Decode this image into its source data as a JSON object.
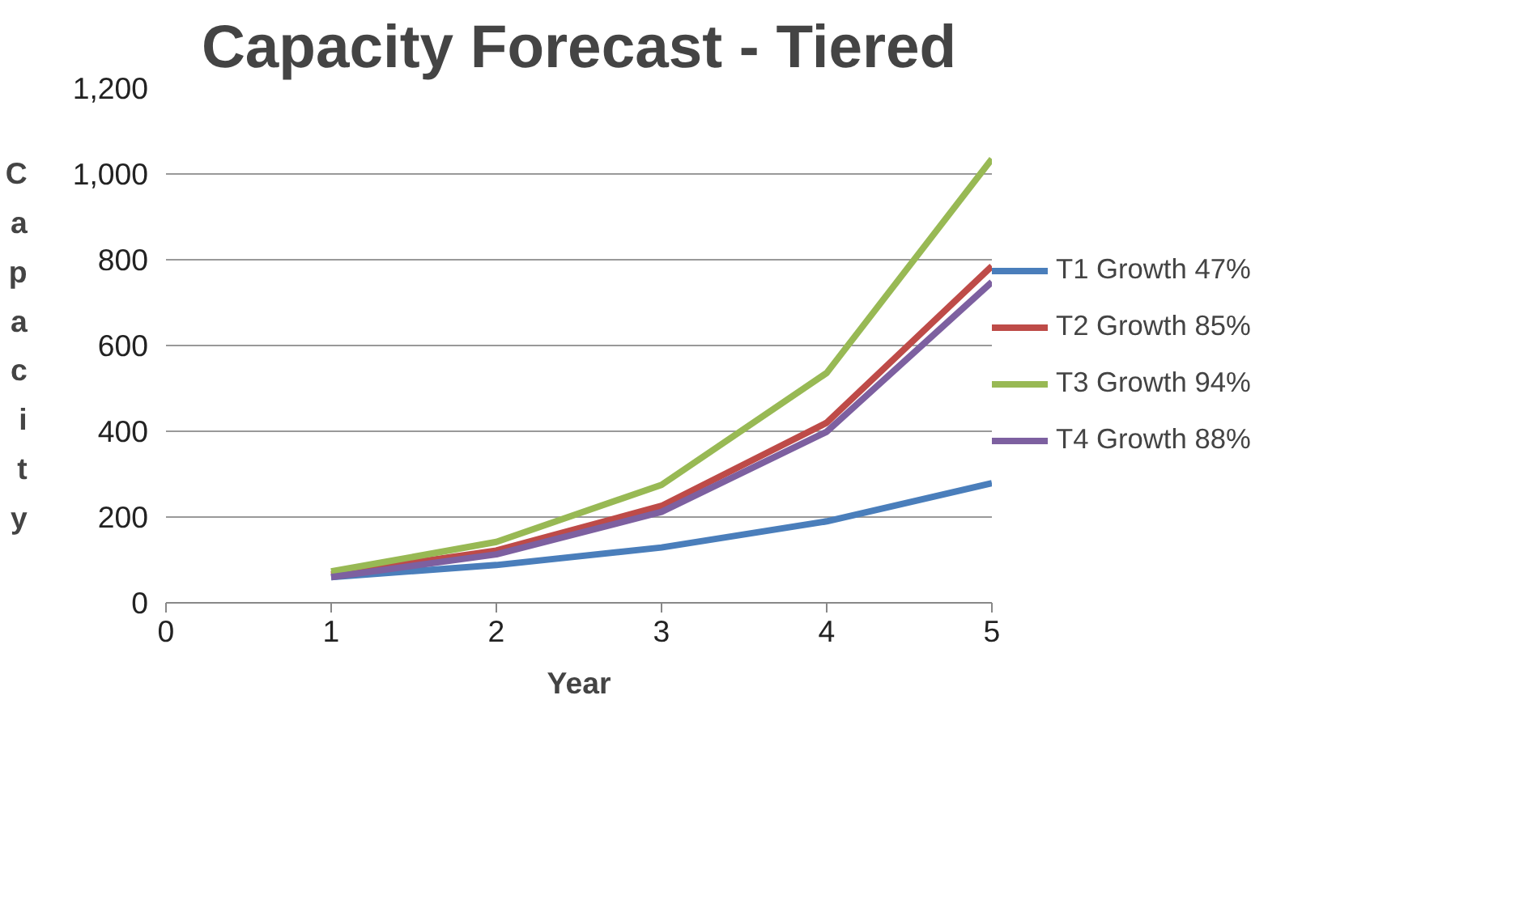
{
  "chart_data": {
    "type": "line",
    "title": "Capacity Forecast - Tiered",
    "xlabel": "Year",
    "ylabel": "Capacity",
    "x": [
      1,
      2,
      3,
      4,
      5
    ],
    "series": [
      {
        "name": "T1 Growth 47%",
        "color": "#4a7ebb",
        "values": [
          60,
          88,
          129,
          190,
          279
        ]
      },
      {
        "name": "T2 Growth 85%",
        "color": "#be4b48",
        "values": [
          66,
          122,
          226,
          420,
          785
        ]
      },
      {
        "name": "T3 Growth 94%",
        "color": "#98b954",
        "values": [
          73,
          142,
          275,
          536,
          1035
        ]
      },
      {
        "name": "T4 Growth 88%",
        "color": "#7d60a0",
        "values": [
          60,
          113,
          212,
          399,
          748
        ]
      }
    ],
    "xlim": [
      0,
      5
    ],
    "ylim": [
      0,
      1200
    ],
    "xticks": [
      0,
      1,
      2,
      3,
      4,
      5
    ],
    "yticks": [
      0,
      200,
      400,
      600,
      800,
      {
        "value": 1000,
        "label": "1,000"
      },
      {
        "value": 1200,
        "label": "1,200"
      }
    ],
    "grid": "y",
    "legend": "right",
    "marker": "none",
    "line_style": "solid"
  }
}
